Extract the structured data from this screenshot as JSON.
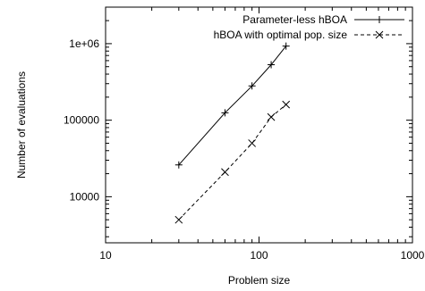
{
  "chart_data": {
    "type": "line",
    "xlabel": "Problem size",
    "ylabel": "Number of evaluations",
    "xscale": "log",
    "yscale": "log",
    "xlim": [
      10,
      1000
    ],
    "ylim": [
      2500,
      3000000
    ],
    "x_ticks": [
      {
        "value": 10,
        "label": "10"
      },
      {
        "value": 100,
        "label": "100"
      },
      {
        "value": 1000,
        "label": "1000"
      }
    ],
    "y_ticks": [
      {
        "value": 10000,
        "label": "10000"
      },
      {
        "value": 100000,
        "label": "100000"
      },
      {
        "value": 1000000,
        "label": "1e+06"
      }
    ],
    "grid": false,
    "legend_position": "top-right",
    "series": [
      {
        "name": "Parameter-less hBOA",
        "marker": "plus",
        "line_style": "solid",
        "color": "#000000",
        "points": [
          {
            "x": 30,
            "y": 26000
          },
          {
            "x": 60,
            "y": 125000
          },
          {
            "x": 90,
            "y": 280000
          },
          {
            "x": 120,
            "y": 530000
          },
          {
            "x": 150,
            "y": 930000
          }
        ]
      },
      {
        "name": "hBOA with optimal pop. size",
        "marker": "cross",
        "line_style": "dashed",
        "color": "#000000",
        "points": [
          {
            "x": 30,
            "y": 5000
          },
          {
            "x": 60,
            "y": 21000
          },
          {
            "x": 90,
            "y": 50000
          },
          {
            "x": 120,
            "y": 110000
          },
          {
            "x": 150,
            "y": 160000
          }
        ]
      }
    ]
  }
}
